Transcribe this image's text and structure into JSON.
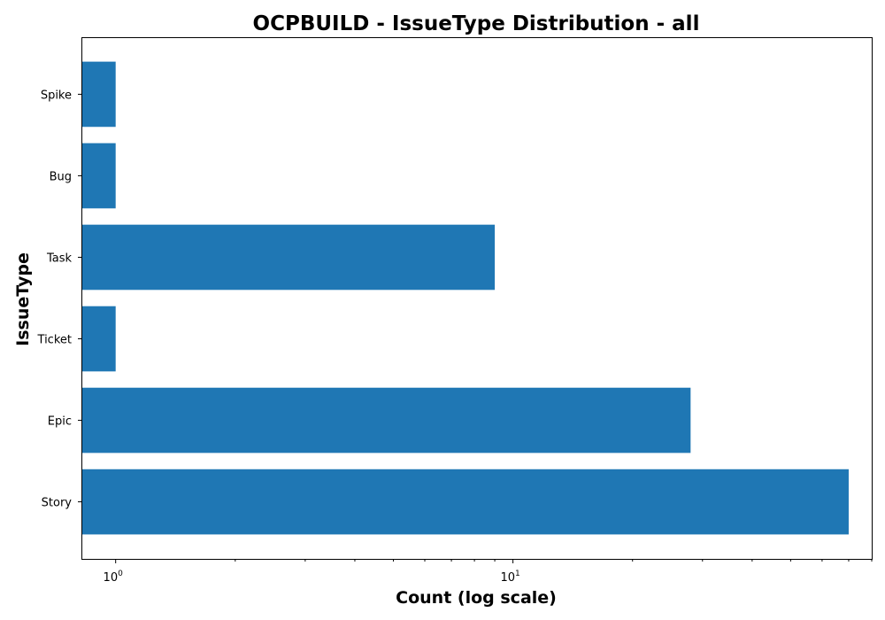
{
  "chart_data": {
    "type": "bar",
    "orientation": "horizontal",
    "title": "OCPBUILD - IssueType Distribution - all",
    "xlabel": "Count (log scale)",
    "ylabel": "IssueType",
    "x_scale": "log",
    "xlim": [
      0.82,
      80
    ],
    "grid": false,
    "categories": [
      "Story",
      "Epic",
      "Ticket",
      "Task",
      "Bug",
      "Spike"
    ],
    "values": [
      70,
      28,
      1,
      9,
      1,
      1
    ],
    "bar_color": "#1f77b4",
    "x_major_ticks": [
      {
        "value": 1,
        "base": "10",
        "exp": "0"
      },
      {
        "value": 10,
        "base": "10",
        "exp": "1"
      }
    ],
    "x_minor_ticks": [
      2,
      3,
      4,
      5,
      6,
      7,
      8,
      9,
      20,
      30,
      40,
      50,
      60,
      70,
      80
    ]
  }
}
